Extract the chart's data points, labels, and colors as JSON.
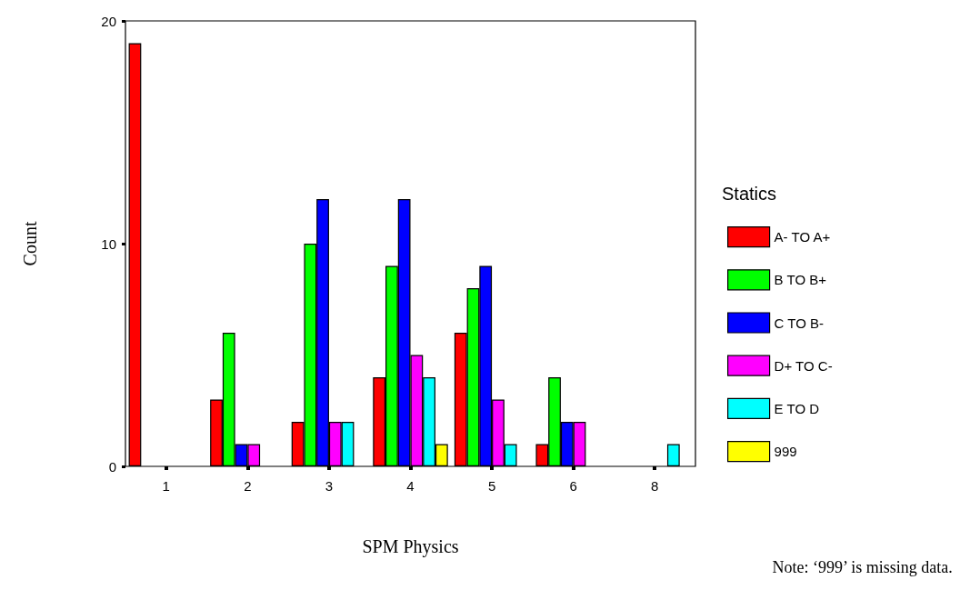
{
  "chart_data": {
    "type": "bar",
    "xlabel": "SPM Physics",
    "ylabel": "Count",
    "legend_title": "Statics",
    "categories": [
      "1",
      "2",
      "3",
      "4",
      "5",
      "6",
      "8"
    ],
    "series": [
      {
        "name": "A- TO A+",
        "color": "#ff0000",
        "values": [
          19,
          3,
          2,
          4,
          6,
          1,
          null
        ]
      },
      {
        "name": "B TO B+",
        "color": "#00ff00",
        "values": [
          null,
          6,
          10,
          9,
          8,
          4,
          null
        ]
      },
      {
        "name": "C TO B-",
        "color": "#0000ff",
        "values": [
          null,
          1,
          12,
          12,
          9,
          2,
          null
        ]
      },
      {
        "name": "D+ TO C-",
        "color": "#ff00ff",
        "values": [
          null,
          1,
          2,
          5,
          3,
          2,
          null
        ]
      },
      {
        "name": "E TO D",
        "color": "#00ffff",
        "values": [
          null,
          null,
          2,
          4,
          1,
          null,
          1
        ]
      },
      {
        "name": "999",
        "color": "#ffff00",
        "values": [
          null,
          null,
          null,
          1,
          null,
          null,
          null
        ]
      }
    ],
    "ylim": [
      0,
      20
    ],
    "yticks": [
      0,
      10,
      20
    ],
    "grid": false,
    "legend": "right",
    "annotations": [
      "Note: ‘999’ is missing data."
    ]
  }
}
